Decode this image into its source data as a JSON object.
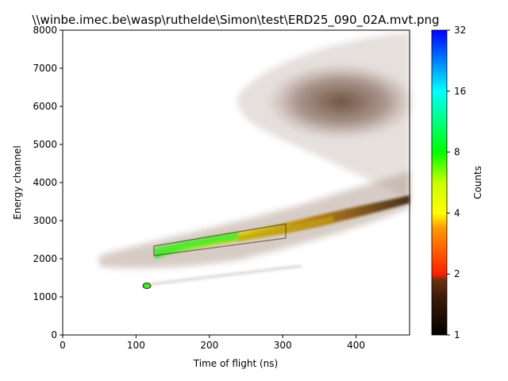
{
  "chart_data": {
    "type": "heatmap",
    "title": "\\\\winbe.imec.be\\wasp\\ruthelde\\Simon\\test\\ERD25_090_02A.mvt.png",
    "xlabel": "Time of flight (ns)",
    "ylabel": "Energy channel",
    "xlim": [
      0,
      473
    ],
    "ylim": [
      0,
      8000
    ],
    "x_ticks": [
      0,
      100,
      200,
      300,
      400
    ],
    "y_ticks": [
      0,
      1000,
      2000,
      3000,
      4000,
      5000,
      6000,
      7000,
      8000
    ],
    "grid": false,
    "colorbar": {
      "label": "Counts",
      "scale": "log",
      "range": [
        1,
        32
      ],
      "ticks": [
        1,
        2,
        4,
        8,
        16,
        32
      ],
      "colormap_stops": [
        "#000000",
        "#5a2a10",
        "#ff2000",
        "#ffcc00",
        "#ffff00",
        "#00ff00",
        "#00ffff",
        "#0000ff"
      ]
    },
    "features": [
      {
        "name": "dense band",
        "x_range": [
          127,
          473
        ],
        "y_range": [
          2200,
          3400
        ],
        "peak_counts": 8
      },
      {
        "name": "low spot",
        "x": 114,
        "y": 1290,
        "peak_counts": 8
      },
      {
        "name": "upper cloud",
        "x_range": [
          290,
          473
        ],
        "y_range": [
          5300,
          7800
        ],
        "peak_counts": 1.5
      }
    ]
  }
}
